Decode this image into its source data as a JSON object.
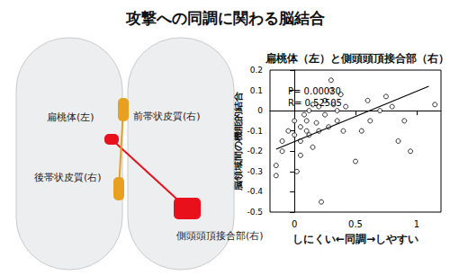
{
  "title": "攻撃への同調に関わる脳結合",
  "diagram": {
    "regions": [
      {
        "label": "扁桃体(左)",
        "color": "#e8111b"
      },
      {
        "label": "前帯状皮質(右)",
        "color": "#e8a020"
      },
      {
        "label": "後帯状皮質(右)",
        "color": "#e8a020"
      },
      {
        "label": "側頭頭頂接合部(右)",
        "color": "#e8111b"
      }
    ]
  },
  "chart_data": {
    "type": "scatter",
    "title": "扁桃体（左）と側頭頭頂接合部（右）",
    "x_label": "しにくい←同調→しやすい",
    "y_label": "脳領域間の機能的結合",
    "x": [
      -0.15,
      -0.15,
      -0.1,
      -0.1,
      -0.05,
      0,
      0,
      0.02,
      0.05,
      0.05,
      0.05,
      0.08,
      0.1,
      0.1,
      0.12,
      0.12,
      0.15,
      0.15,
      0.18,
      0.2,
      0.2,
      0.22,
      0.25,
      0.25,
      0.28,
      0.3,
      0.3,
      0.32,
      0.35,
      0.35,
      0.38,
      0.4,
      0.42,
      0.5,
      0.55,
      0.6,
      0.62,
      0.7,
      0.75,
      0.8,
      0.85,
      0.9,
      0.95,
      1.15
    ],
    "values": [
      -0.27,
      -0.32,
      -0.15,
      -0.2,
      -0.1,
      -0.05,
      -0.12,
      -0.3,
      -0.08,
      -0.15,
      -0.22,
      -0.02,
      -0.1,
      -0.05,
      0,
      -0.12,
      -0.18,
      0.03,
      -0.06,
      0.02,
      -0.1,
      -0.45,
      0.05,
      -0.02,
      -0.08,
      0.15,
      0.1,
      0.03,
      0,
      -0.05,
      0.08,
      -0.1,
      0.02,
      -0.25,
      -0.1,
      0.05,
      -0.05,
      0,
      0.07,
      0.02,
      -0.15,
      -0.05,
      -0.2,
      0.03
    ],
    "fit_line": {
      "x": [
        -0.15,
        1.1
      ],
      "y": [
        -0.19,
        0.12
      ]
    },
    "annotations": [
      "P= 0.00030",
      "R= 0.52505"
    ],
    "xlim": [
      -0.2,
      1.2
    ],
    "xticks": [
      0,
      0.5,
      1
    ],
    "ylim": [
      -0.5,
      0.2
    ],
    "yticks": [
      -0.5,
      -0.4,
      -0.3,
      -0.2,
      -0.1,
      0,
      0.1,
      0.2
    ],
    "grid": false,
    "color": "#000000",
    "marker": "circle_open"
  }
}
